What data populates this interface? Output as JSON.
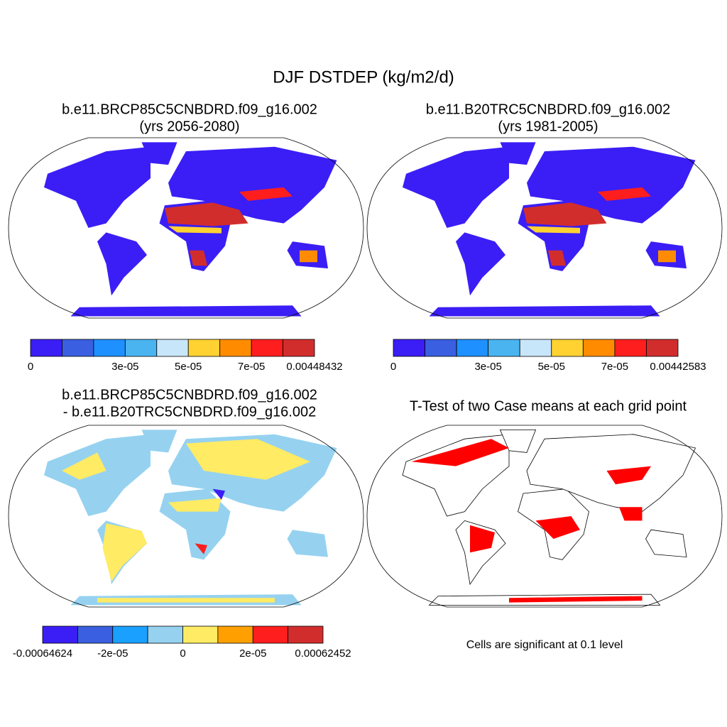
{
  "title": "DJF DSTDEP (kg/m2/d)",
  "panels": [
    {
      "title_lines": [
        "b.e11.BRCP85C5CNBDRD.f09_g16.002",
        "(yrs 2056-2080)"
      ],
      "colorbar": {
        "colors": [
          "#3b1ef5",
          "#3a5fe0",
          "#1e90ff",
          "#4ab4f0",
          "#c8e6fa",
          "#ffd232",
          "#ff8c00",
          "#ff1e1e",
          "#d22d2d"
        ],
        "labels": [
          "0",
          "3e-05",
          "5e-05",
          "7e-05",
          "0.00448432"
        ]
      }
    },
    {
      "title_lines": [
        "b.e11.B20TRC5CNBDRD.f09_g16.002",
        "(yrs 1981-2005)"
      ],
      "colorbar": {
        "colors": [
          "#3b1ef5",
          "#3a5fe0",
          "#1e90ff",
          "#4ab4f0",
          "#c8e6fa",
          "#ffd232",
          "#ff8c00",
          "#ff1e1e",
          "#d22d2d"
        ],
        "labels": [
          "0",
          "3e-05",
          "5e-05",
          "7e-05",
          "0.00442583"
        ]
      }
    },
    {
      "title_lines": [
        "b.e11.BRCP85C5CNBDRD.f09_g16.002",
        "- b.e11.B20TRC5CNBDRD.f09_g16.002"
      ],
      "colorbar": {
        "colors": [
          "#3b1ef5",
          "#3a5fe0",
          "#1aa0ff",
          "#96d2f0",
          "#ffeb64",
          "#ffa000",
          "#ff1e1e",
          "#d22d2d"
        ],
        "labels": [
          "-0.00064624",
          "-2e-05",
          "0",
          "2e-05",
          "0.00062452"
        ]
      }
    },
    {
      "title_lines": [
        "T-Test of two Case means at each grid point"
      ],
      "note": "Cells are significant at 0.1 level"
    }
  ]
}
